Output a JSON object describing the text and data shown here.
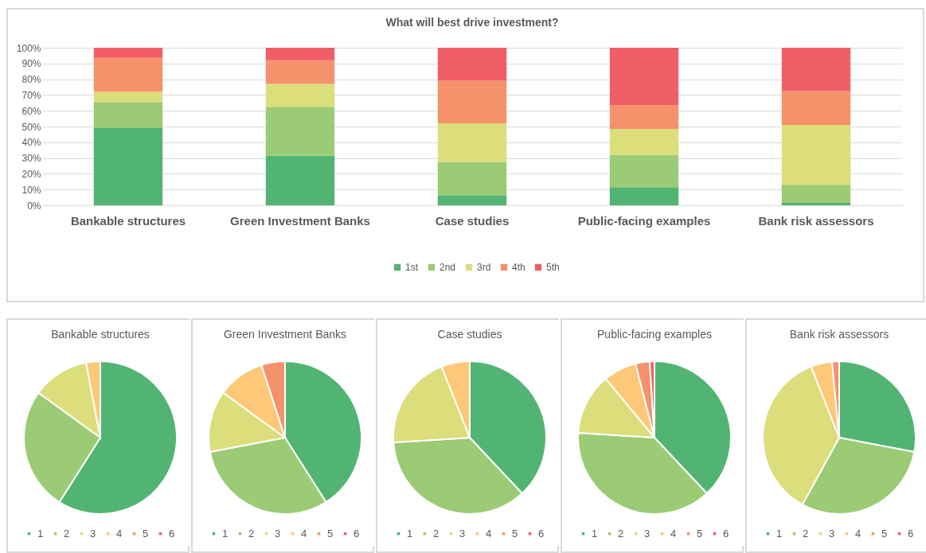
{
  "chart_data": [
    {
      "type": "bar",
      "title": "What will best drive investment?",
      "stacked": true,
      "categories": [
        "Bankable structures",
        "Green Investment Banks",
        "Case studies",
        "Public-facing examples",
        "Bank risk assessors"
      ],
      "series": [
        {
          "name": "1st",
          "color": "#52b473",
          "values": [
            49,
            31.5,
            6.5,
            11.5,
            1.5
          ]
        },
        {
          "name": "2nd",
          "color": "#9bcb74",
          "values": [
            16.5,
            31,
            21,
            20.5,
            11.5
          ]
        },
        {
          "name": "3rd",
          "color": "#dcdd7b",
          "values": [
            6.5,
            14.5,
            24.5,
            16.5,
            38
          ]
        },
        {
          "name": "4th",
          "color": "#f6926b",
          "values": [
            21.5,
            15,
            27,
            15,
            21.5
          ]
        },
        {
          "name": "5th",
          "color": "#f05e68",
          "values": [
            6.5,
            8,
            21,
            36.5,
            27.5
          ]
        }
      ],
      "ylim": [
        0,
        100
      ],
      "yticks": [
        {
          "value": 0,
          "label": "0%"
        },
        {
          "value": 10,
          "label": "10%"
        },
        {
          "value": 20,
          "label": "20%"
        },
        {
          "value": 30,
          "label": "30%"
        },
        {
          "value": 40,
          "label": "40%"
        },
        {
          "value": 50,
          "label": "50%"
        },
        {
          "value": 60,
          "label": "60%"
        },
        {
          "value": 70,
          "label": "70%"
        },
        {
          "value": 80,
          "label": "80%"
        },
        {
          "value": 90,
          "label": "90%"
        },
        {
          "value": 100,
          "label": "100%"
        }
      ],
      "grid": "y",
      "legend": "bottom"
    },
    {
      "type": "pie",
      "title": "Bankable structures",
      "categories": [
        "1",
        "2",
        "3",
        "4",
        "5",
        "6"
      ],
      "values": [
        59,
        26,
        12,
        3,
        0,
        0
      ],
      "colors": [
        "#52b473",
        "#9bcb74",
        "#dcdd7b",
        "#fdc877",
        "#f6926b",
        "#f05e68"
      ],
      "legend": "bottom"
    },
    {
      "type": "pie",
      "title": "Green Investment Banks",
      "categories": [
        "1",
        "2",
        "3",
        "4",
        "5",
        "6"
      ],
      "values": [
        41,
        31,
        13,
        10,
        5,
        0
      ],
      "colors": [
        "#52b473",
        "#9bcb74",
        "#dcdd7b",
        "#fdc877",
        "#f6926b",
        "#f05e68"
      ],
      "legend": "bottom"
    },
    {
      "type": "pie",
      "title": "Case studies",
      "categories": [
        "1",
        "2",
        "3",
        "4",
        "5",
        "6"
      ],
      "values": [
        38,
        36,
        20,
        6,
        0,
        0
      ],
      "colors": [
        "#52b473",
        "#9bcb74",
        "#dcdd7b",
        "#fdc877",
        "#f6926b",
        "#f05e68"
      ],
      "legend": "bottom"
    },
    {
      "type": "pie",
      "title": "Public-facing examples",
      "categories": [
        "1",
        "2",
        "3",
        "4",
        "5",
        "6"
      ],
      "values": [
        38,
        38,
        13,
        7,
        3,
        1
      ],
      "colors": [
        "#52b473",
        "#9bcb74",
        "#dcdd7b",
        "#fdc877",
        "#f6926b",
        "#f05e68"
      ],
      "legend": "bottom"
    },
    {
      "type": "pie",
      "title": "Bank risk assessors",
      "categories": [
        "1",
        "2",
        "3",
        "4",
        "5",
        "6"
      ],
      "values": [
        28,
        30,
        36,
        4.5,
        1.5,
        0
      ],
      "colors": [
        "#52b473",
        "#9bcb74",
        "#dcdd7b",
        "#fdc877",
        "#f6926b",
        "#f05e68"
      ],
      "legend": "bottom"
    }
  ]
}
